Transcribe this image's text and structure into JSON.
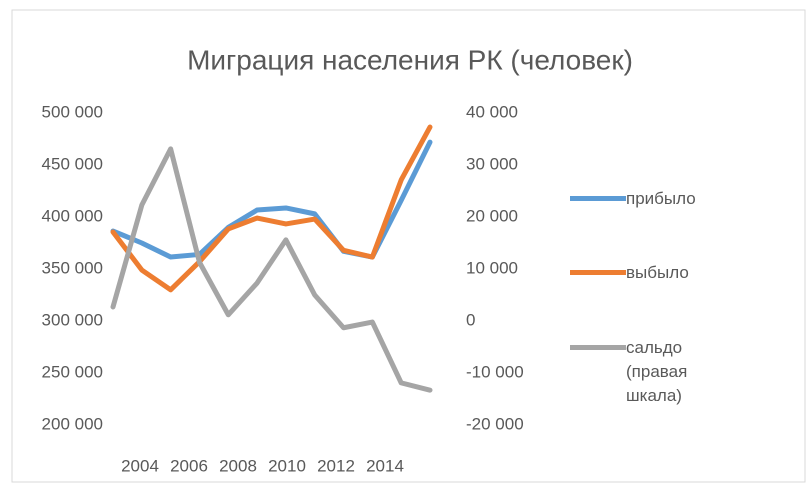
{
  "chart_data": {
    "type": "line",
    "title": "Миграция населения РК (человек)",
    "categories": [
      "2004",
      null,
      "2006",
      null,
      "2008",
      null,
      "2010",
      null,
      "2012",
      null,
      "2014",
      null
    ],
    "series": [
      {
        "name": "прибыло",
        "color": "#5b9bd5",
        "values": [
          386500,
          375000,
          361500,
          364000,
          390000,
          406700,
          408700,
          403000,
          367000,
          361500,
          416000,
          472000
        ]
      },
      {
        "name": "выбыло",
        "color": "#ed7d31",
        "values": [
          385600,
          349000,
          330000,
          357000,
          388500,
          399000,
          393300,
          398000,
          368000,
          361500,
          435600,
          486500
        ]
      },
      {
        "name": "сальдо (правая шкала)",
        "color": "#a5a5a5",
        "axis": "y2",
        "values": [
          2700,
          22300,
          33100,
          11300,
          1200,
          7300,
          15600,
          5000,
          -1300,
          -200,
          -11900,
          -13300
        ]
      }
    ],
    "ylim": [
      200000,
      500000
    ],
    "yticks": [
      {
        "value": 200000,
        "label": "200 000"
      },
      {
        "value": 250000,
        "label": "250 000"
      },
      {
        "value": 300000,
        "label": "300 000"
      },
      {
        "value": 350000,
        "label": "350 000"
      },
      {
        "value": 400000,
        "label": "400 000"
      },
      {
        "value": 450000,
        "label": "450 000"
      },
      {
        "value": 500000,
        "label": "500 000"
      }
    ],
    "y2lim": [
      -20000,
      40000
    ],
    "y2ticks": [
      {
        "value": -20000,
        "label": "-20 000"
      },
      {
        "value": -10000,
        "label": "-10 000"
      },
      0,
      {
        "value": 10000,
        "label": "10 000"
      },
      {
        "value": 20000,
        "label": "20 000"
      },
      {
        "value": 30000,
        "label": "30 000"
      },
      {
        "value": 40000,
        "label": "40 000"
      }
    ],
    "grid": false
  }
}
